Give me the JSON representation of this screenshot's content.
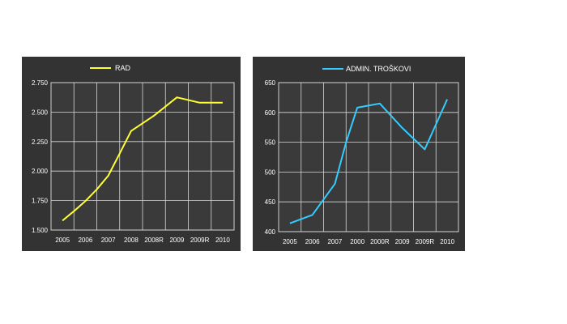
{
  "chart_data": [
    {
      "type": "line",
      "categories": [
        "2005",
        "2006",
        "2007",
        "2008",
        "2008R",
        "2009",
        "2009R",
        "2010"
      ],
      "series": [
        {
          "name": "RAD",
          "color": "#ffff33",
          "points": [
            [
              0,
              1580
            ],
            [
              0.5,
              1660
            ],
            [
              1,
              1745
            ],
            [
              1.5,
              1845
            ],
            [
              2,
              1960
            ],
            [
              2.5,
              2150
            ],
            [
              3,
              2340
            ],
            [
              4,
              2470
            ],
            [
              5,
              2625
            ],
            [
              6,
              2580
            ],
            [
              7,
              2580
            ]
          ]
        }
      ],
      "ylim": [
        1500,
        2750
      ],
      "yticks": [
        "1.500",
        "1.750",
        "2.000",
        "2.250",
        "2.500",
        "2.750"
      ],
      "legend_position": "top",
      "grid": true,
      "background": "#333333",
      "plot_background": "#3a3a3a"
    },
    {
      "type": "line",
      "categories": [
        "2005",
        "2006",
        "2007",
        "2000",
        "2000R",
        "2009",
        "2009R",
        "2010"
      ],
      "series": [
        {
          "name": "ADMIN. TROŠKOVI",
          "color": "#33ccff",
          "points": [
            [
              0,
              414
            ],
            [
              1,
              428
            ],
            [
              2,
              480
            ],
            [
              2.5,
              550
            ],
            [
              3,
              608
            ],
            [
              4,
              615
            ],
            [
              5,
              574
            ],
            [
              6,
              538
            ],
            [
              7,
              622
            ]
          ]
        }
      ],
      "ylim": [
        400,
        650
      ],
      "yticks": [
        "400",
        "450",
        "500",
        "550",
        "600",
        "650"
      ],
      "legend_position": "top",
      "grid": true,
      "background": "#333333",
      "plot_background": "#3a3a3a"
    }
  ]
}
